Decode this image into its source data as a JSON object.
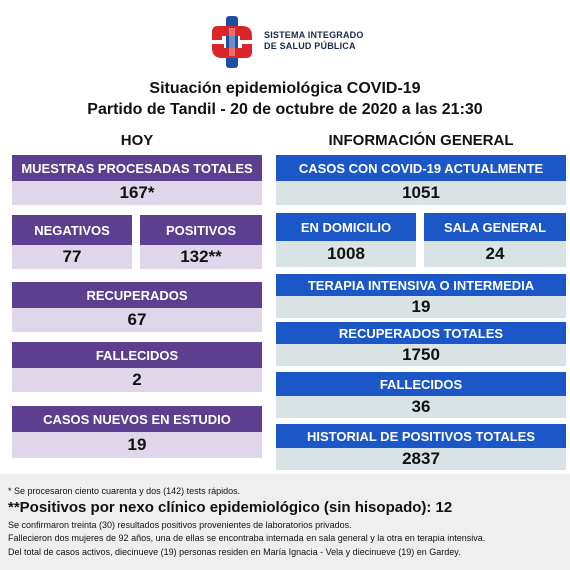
{
  "logo": {
    "line1": "SISTEMA INTEGRADO",
    "line2": "DE SALUD PÚBLICA"
  },
  "title": {
    "line1": "Situación epidemiológica COVID-19",
    "line2": "Partido de Tandil - 20 de octubre de 2020 a las 21:30"
  },
  "hoy": {
    "heading": "HOY",
    "muestras": {
      "label": "MUESTRAS PROCESADAS TOTALES",
      "value": "167*"
    },
    "negativos": {
      "label": "NEGATIVOS",
      "value": "77"
    },
    "positivos": {
      "label": "POSITIVOS",
      "value": "132**"
    },
    "recuperados": {
      "label": "RECUPERADOS",
      "value": "67"
    },
    "fallecidos": {
      "label": "FALLECIDOS",
      "value": "2"
    },
    "casos_nuevos": {
      "label": "CASOS NUEVOS EN ESTUDIO",
      "value": "19"
    }
  },
  "general": {
    "heading": "INFORMACIÓN GENERAL",
    "casos_actuales": {
      "label": "CASOS CON COVID-19 ACTUALMENTE",
      "value": "1051"
    },
    "domicilio": {
      "label": "EN DOMICILIO",
      "value": "1008"
    },
    "sala_general": {
      "label": "SALA GENERAL",
      "value": "24"
    },
    "terapia": {
      "label": "TERAPIA INTENSIVA O INTERMEDIA",
      "value": "19"
    },
    "recuperados_totales": {
      "label": "RECUPERADOS TOTALES",
      "value": "1750"
    },
    "fallecidos": {
      "label": "FALLECIDOS",
      "value": "36"
    },
    "historial": {
      "label": "HISTORIAL DE POSITIVOS TOTALES",
      "value": "2837"
    }
  },
  "footer": {
    "note1": "* Se procesaron ciento cuarenta y dos (142) tests rápidos.",
    "note2": "**Positivos por nexo clínico epidemiológico (sin hisopado): 12",
    "note3": "Se confirmaron treinta (30) resultados positivos provenientes de laboratorios privados.",
    "note4": "Fallecieron dos mujeres de 92 años, una de ellas se encontraba internada en sala general y la otra  en terapia intensiva.",
    "note5": "Del total de casos activos, diecinueve (19) personas residen en María Ignacia - Vela y diecinueve (19) en Gardey."
  },
  "colors": {
    "purple_header": "#5c3f8f",
    "purple_value": "#dfd6ea",
    "blue_header": "#1b57c6",
    "blue_value": "#d9e2e4",
    "logo_red": "#d8262b",
    "logo_blue": "#1f4fa5"
  }
}
